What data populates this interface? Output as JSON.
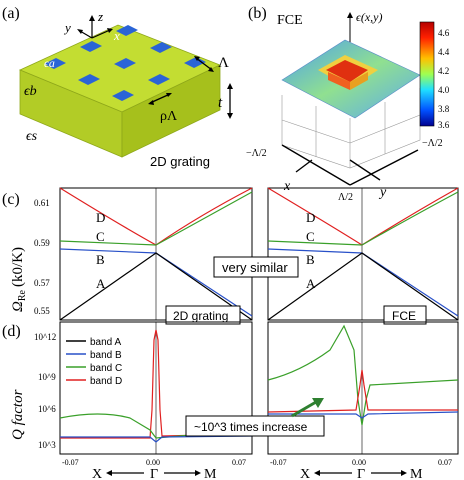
{
  "panels": {
    "a": {
      "label": "(a)",
      "axis_z": "z",
      "axis_y": "y",
      "axis_x": "x",
      "eps_a": "ϵa",
      "eps_b": "ϵb",
      "eps_s": "ϵs",
      "lambda": "Λ",
      "rho_lambda": "ρΛ",
      "thickness": "t",
      "caption": "2D grating"
    },
    "b": {
      "label": "(b)",
      "title": "FCE",
      "func_label": "ϵ(x,y)",
      "colorbar_ticks": [
        "4.6",
        "4.4",
        "4.2",
        "4.0",
        "3.8",
        "3.6"
      ],
      "neg_half_x": "−Λ/2",
      "neg_half_y": "−Λ/2",
      "half_x": "Λ/2",
      "axis_x": "x",
      "axis_y": "y"
    },
    "c": {
      "label": "(c)",
      "ylabel_main": "Ω",
      "ylabel_sub": "Re",
      "ylabel_paren": "(k0/K)",
      "yticks": [
        "0.61",
        "0.59",
        "0.57",
        "0.55"
      ],
      "band_letters": [
        "D",
        "C",
        "B",
        "A"
      ],
      "left_tag": "2D grating",
      "right_tag": "FCE",
      "center_tag": "very similar"
    },
    "d": {
      "label": "(d)",
      "ylabel": "Q factor",
      "yticks": [
        "10^12",
        "10^9",
        "10^6",
        "10^3"
      ],
      "xticks_left": [
        "-0.07",
        "0.00",
        "0.07"
      ],
      "xticks_right": [
        "-0.07",
        "0.00",
        "0.07"
      ],
      "xaxis_text": [
        "X",
        "Γ",
        "M"
      ],
      "annotation": "~10^3 times increase",
      "legend": [
        {
          "name": "band A",
          "color": "#000000"
        },
        {
          "name": "band B",
          "color": "#2850c8"
        },
        {
          "name": "band C",
          "color": "#3aa02a"
        },
        {
          "name": "band D",
          "color": "#e02020"
        }
      ]
    }
  },
  "colors": {
    "slab": "#c3dd32",
    "slab_side": "#a9c41f",
    "hole": "#2a64d6",
    "band_A": "#000000",
    "band_B": "#2850c8",
    "band_C": "#3aa02a",
    "band_D": "#e02020"
  }
}
